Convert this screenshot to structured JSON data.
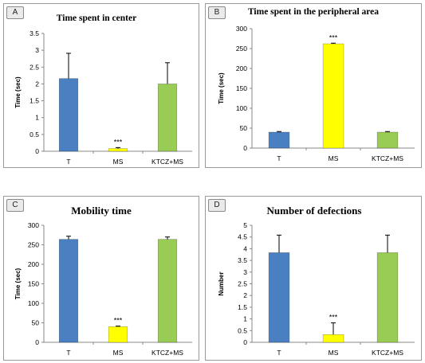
{
  "colors": {
    "blue": "#4a7fc1",
    "yellow": "#ffff00",
    "green": "#99cc55",
    "axis": "#888888"
  },
  "chart_data": [
    {
      "type": "bar",
      "panel": "A",
      "title": "Time spent in center",
      "ylabel": "Time (sec)",
      "ylim": [
        0,
        3.5
      ],
      "yticks": [
        "0",
        "0.5",
        "1",
        "1.5",
        "2",
        "2.5",
        "3",
        "3.5"
      ],
      "categories": [
        "T",
        "MS",
        "KTCZ+MS"
      ],
      "values": [
        2.16,
        0.08,
        2.0
      ],
      "errors": [
        0.75,
        0.03,
        0.63
      ],
      "colors": [
        "blue",
        "yellow",
        "green"
      ],
      "annotations": [
        "",
        "***",
        ""
      ]
    },
    {
      "type": "bar",
      "panel": "B",
      "title": "Time spent in the peripheral area",
      "ylabel": "Time (sec)",
      "ylim": [
        0,
        300
      ],
      "yticks": [
        "0",
        "50",
        "100",
        "150",
        "200",
        "250",
        "300"
      ],
      "categories": [
        "T",
        "MS",
        "KTCZ+MS"
      ],
      "values": [
        40,
        262,
        40
      ],
      "errors": [
        1.5,
        1.5,
        1.5
      ],
      "colors": [
        "blue",
        "yellow",
        "green"
      ],
      "annotations": [
        "",
        "***",
        ""
      ]
    },
    {
      "type": "bar",
      "panel": "C",
      "title": "Mobility time",
      "ylabel": "Time (sec)",
      "ylim": [
        0,
        300
      ],
      "yticks": [
        "0",
        "50",
        "100",
        "150",
        "200",
        "250",
        "300"
      ],
      "categories": [
        "T",
        "MS",
        "KTCZ+MS"
      ],
      "values": [
        264,
        40,
        264
      ],
      "errors": [
        8,
        1.5,
        6
      ],
      "colors": [
        "blue",
        "yellow",
        "green"
      ],
      "annotations": [
        "",
        "***",
        ""
      ]
    },
    {
      "type": "bar",
      "panel": "D",
      "title": "Number of defections",
      "ylabel": "Number",
      "ylim": [
        0,
        5
      ],
      "yticks": [
        "0",
        "0.5",
        "1",
        "1.5",
        "2",
        "2.5",
        "3",
        "3.5",
        "4",
        "4.5",
        "5"
      ],
      "categories": [
        "T",
        "MS",
        "KTCZ+MS"
      ],
      "values": [
        3.83,
        0.33,
        3.83
      ],
      "errors": [
        0.75,
        0.5,
        0.75
      ],
      "colors": [
        "blue",
        "yellow",
        "green"
      ],
      "annotations": [
        "",
        "***",
        ""
      ]
    }
  ]
}
